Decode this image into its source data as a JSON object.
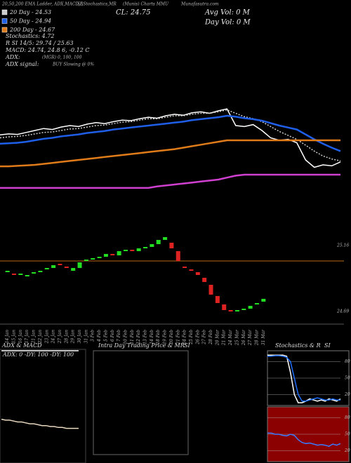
{
  "chart_data": [
    {
      "type": "line",
      "title": "20,50,200 EMA Ladder, ADX,MACD,B",
      "subtitle": "SI,Stochastics,MR",
      "source": "(Munis) Charts MMU",
      "site": "Munafasutra.com",
      "annotations": [
        "Stochastics: 4.72",
        "R SI 14/5: 29.74 / 25.63",
        "MACD: 24.74, 24.8 6, -0.12 C",
        "ADX:",
        "(MGR) 0, 100, 100",
        "ADX signal:",
        "BUY Slowing @ 0%",
        "CL: 24.75",
        "Avg Vol: 0 M",
        "Day Vol: 0 M"
      ],
      "ylim": [
        24.0,
        26.0
      ],
      "series": [
        {
          "color": "#ffffff",
          "values": [
            25.11,
            25.13,
            25.12,
            25.16,
            25.2,
            25.24,
            25.22,
            25.27,
            25.3,
            25.28,
            25.33,
            25.36,
            25.34,
            25.38,
            25.41,
            25.4,
            25.44,
            25.47,
            25.45,
            25.5,
            25.53,
            25.51,
            25.56,
            25.58,
            25.55,
            25.6,
            25.64,
            25.3,
            25.28,
            25.32,
            25.2,
            25.05,
            25.0,
            25.02,
            24.95,
            24.6,
            24.45,
            24.5,
            24.48,
            24.56
          ]
        },
        {
          "name": "20 Day - 24.53",
          "color": "#cccccc",
          "values": [
            25.05,
            25.07,
            25.08,
            25.1,
            25.13,
            25.16,
            25.17,
            25.2,
            25.23,
            25.24,
            25.27,
            25.3,
            25.31,
            25.34,
            25.37,
            25.38,
            25.41,
            25.44,
            25.44,
            25.47,
            25.5,
            25.5,
            25.53,
            25.55,
            25.55,
            25.58,
            25.62,
            25.55,
            25.48,
            25.44,
            25.38,
            25.28,
            25.18,
            25.1,
            25.02,
            24.9,
            24.78,
            24.68,
            24.62,
            24.58
          ]
        },
        {
          "name": "50 Day - 24.94",
          "color": "#1f5fe8",
          "values": [
            24.93,
            24.94,
            24.95,
            24.97,
            25.0,
            25.03,
            25.05,
            25.08,
            25.1,
            25.12,
            25.15,
            25.17,
            25.19,
            25.22,
            25.24,
            25.26,
            25.28,
            25.3,
            25.32,
            25.34,
            25.36,
            25.38,
            25.41,
            25.43,
            25.45,
            25.47,
            25.5,
            25.48,
            25.45,
            25.43,
            25.4,
            25.35,
            25.3,
            25.26,
            25.22,
            25.12,
            25.02,
            24.93,
            24.85,
            24.78
          ]
        },
        {
          "name": "200 Day - 24.67",
          "color": "#e07b1a",
          "values": [
            24.47,
            24.47,
            24.48,
            24.49,
            24.5,
            24.52,
            24.54,
            24.56,
            24.58,
            24.6,
            24.62,
            24.64,
            24.66,
            24.68,
            24.7,
            24.72,
            24.74,
            24.76,
            24.78,
            24.8,
            24.82,
            24.85,
            24.88,
            24.91,
            24.94,
            24.97,
            25.0,
            25.0,
            25.0,
            25.0,
            25.0,
            25.0,
            25.0,
            25.0,
            25.0,
            25.0,
            25.0,
            25.0,
            25.0,
            25.0
          ]
        },
        {
          "color": "#d040d0",
          "values": [
            24.03,
            24.03,
            24.03,
            24.03,
            24.03,
            24.03,
            24.03,
            24.03,
            24.03,
            24.03,
            24.03,
            24.03,
            24.03,
            24.03,
            24.03,
            24.03,
            24.03,
            24.03,
            24.06,
            24.08,
            24.1,
            24.12,
            24.14,
            24.16,
            24.18,
            24.2,
            24.24,
            24.28,
            24.3,
            24.3,
            24.3,
            24.3,
            24.3,
            24.3,
            24.3,
            24.3,
            24.3,
            24.3,
            24.3,
            24.3
          ]
        }
      ]
    },
    {
      "type": "candlestick",
      "x": [
        "14 Jan",
        "15 Jan",
        "16 Jan",
        "17 Jan",
        "21 Jan",
        "22 Jan",
        "23 Jan",
        "24 Jan",
        "27 Jan",
        "28 Jan",
        "29 Jan",
        "30 Jan",
        "31 Jan",
        "3 Feb",
        "4 Feb",
        "5 Feb",
        "6 Feb",
        "7 Feb",
        "10 Feb",
        "11 Feb",
        "12 Feb",
        "13 Feb",
        "14 Feb",
        "18 Feb",
        "19 Feb",
        "20 Feb",
        "21 Feb",
        "24 Feb",
        "25 Feb",
        "26 Feb",
        "27 Feb",
        "28 Feb",
        "20 Mar",
        "21 Mar",
        "24 Mar",
        "25 Mar",
        "26 Mar",
        "27 Mar",
        "28 Mar",
        "31 Mar"
      ],
      "open": [
        24.97,
        24.96,
        24.95,
        24.94,
        24.96,
        24.97,
        24.99,
        25.0,
        25.03,
        25.01,
        24.98,
        25.0,
        25.05,
        25.06,
        25.07,
        25.08,
        25.1,
        25.09,
        25.12,
        25.13,
        25.12,
        25.14,
        25.15,
        25.17,
        25.2,
        25.18,
        25.12,
        25.01,
        24.99,
        24.97,
        24.93,
        24.88,
        24.8,
        24.74,
        24.7,
        24.69,
        24.7,
        24.71,
        24.74,
        24.76
      ],
      "close": [
        24.98,
        24.95,
        24.96,
        24.95,
        24.97,
        24.98,
        25.0,
        25.02,
        25.02,
        25.0,
        25.0,
        25.04,
        25.06,
        25.07,
        25.08,
        25.1,
        25.09,
        25.12,
        25.13,
        25.12,
        25.14,
        25.15,
        25.17,
        25.2,
        25.22,
        25.14,
        25.05,
        25.0,
        24.98,
        24.95,
        24.9,
        24.81,
        24.75,
        24.7,
        24.69,
        24.7,
        24.71,
        24.73,
        24.75,
        24.78
      ],
      "up_color": "#22dd22",
      "down_color": "#dd2222",
      "ylim": [
        24.6,
        25.3
      ],
      "yticks": [
        25.16,
        24.69
      ]
    },
    {
      "type": "line",
      "title": "ADX & MACD",
      "subtitle": "ADX: 0 -DY: 100 -DY: 100",
      "ylim": [
        0,
        100
      ],
      "y2lim": [
        -0.5,
        0.1
      ],
      "series": [
        {
          "color": "#ffffff",
          "values": [
            100,
            100,
            100,
            100,
            100,
            100,
            100,
            100,
            100,
            100
          ]
        },
        {
          "color": "#e8d8c0",
          "axis": "y2",
          "values": [
            -0.02,
            -0.03,
            -0.03,
            -0.04,
            -0.05,
            -0.05,
            -0.06,
            -0.07,
            -0.07,
            -0.08,
            -0.09,
            -0.09,
            -0.1,
            -0.1,
            -0.11,
            -0.11,
            -0.12,
            -0.12,
            -0.12,
            -0.12
          ]
        }
      ]
    },
    {
      "type": "line",
      "title": "Intra Day Trading Price & MR",
      "subtitle": "SI",
      "series": []
    },
    {
      "type": "line",
      "title": "Stochastics & R",
      "subtitle": "SI",
      "ylim": [
        0,
        100
      ],
      "yticks": [
        80,
        50,
        20
      ],
      "background": "#000000",
      "series": [
        {
          "color": "#ffffff",
          "values": [
            92,
            92,
            92,
            92,
            92,
            90,
            60,
            20,
            5,
            5,
            8,
            12,
            10,
            8,
            10,
            8,
            12,
            10,
            8,
            12
          ]
        },
        {
          "color": "#1f6fff",
          "values": [
            90,
            90,
            91,
            91,
            90,
            88,
            80,
            50,
            20,
            8,
            8,
            10,
            12,
            14,
            12,
            10,
            10,
            12,
            10,
            10
          ]
        }
      ]
    },
    {
      "type": "line",
      "ylim": [
        0,
        100
      ],
      "yticks": [
        80,
        50,
        20
      ],
      "background": "#8b0000",
      "series": [
        {
          "color": "#3a7bff",
          "values": [
            52,
            52,
            50,
            50,
            48,
            47,
            50,
            48,
            40,
            35,
            33,
            34,
            32,
            30,
            31,
            30,
            28,
            32,
            30,
            33
          ]
        }
      ]
    }
  ]
}
